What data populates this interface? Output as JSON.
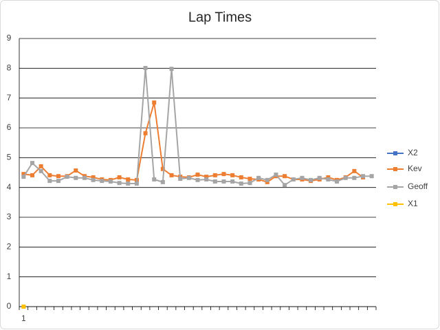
{
  "chart_data": {
    "type": "line",
    "title": "Lap Times",
    "categories": [
      "1",
      null,
      null,
      null,
      null,
      null,
      null,
      null,
      null,
      null,
      null,
      null,
      null,
      null,
      null,
      null,
      null,
      null,
      null,
      null,
      null,
      null,
      null,
      null,
      null,
      null,
      null,
      null,
      null,
      null,
      null,
      null,
      null,
      null,
      null,
      null,
      null,
      null,
      null,
      null,
      null
    ],
    "series": [
      {
        "name": "X2",
        "color": "#4472c4",
        "values": [
          null,
          null,
          null,
          null,
          null,
          null,
          null,
          null,
          null,
          null,
          null,
          null,
          null,
          null,
          null,
          null,
          null,
          null,
          null,
          null,
          null,
          null,
          null,
          null,
          null,
          null,
          null,
          null,
          null,
          null,
          null,
          null,
          null,
          null,
          null,
          null,
          null,
          null,
          null,
          null,
          null
        ]
      },
      {
        "name": "Kev",
        "color": "#ed7d31",
        "values": [
          4.45,
          4.41,
          4.71,
          4.41,
          4.38,
          4.38,
          4.57,
          4.38,
          4.34,
          4.27,
          4.25,
          4.34,
          4.27,
          4.25,
          5.82,
          6.85,
          4.62,
          4.41,
          4.36,
          4.34,
          4.43,
          4.36,
          4.41,
          4.45,
          4.41,
          4.34,
          4.29,
          4.27,
          4.18,
          4.38,
          4.38,
          4.27,
          4.27,
          4.22,
          4.27,
          4.34,
          4.25,
          4.34,
          4.55,
          4.34,
          null
        ]
      },
      {
        "name": "Geoff",
        "color": "#a5a5a5",
        "values": [
          4.36,
          4.82,
          4.55,
          4.22,
          4.22,
          4.36,
          4.32,
          4.32,
          4.25,
          4.22,
          4.2,
          4.15,
          4.13,
          4.13,
          8.01,
          4.27,
          4.18,
          7.98,
          4.29,
          4.32,
          4.25,
          4.27,
          4.2,
          4.2,
          4.2,
          4.13,
          4.15,
          4.32,
          4.25,
          4.43,
          4.08,
          4.27,
          4.32,
          4.25,
          4.32,
          4.27,
          4.2,
          4.32,
          4.32,
          4.38,
          4.38
        ]
      },
      {
        "name": "X1",
        "color": "#ffc000",
        "values": [
          0,
          null,
          null,
          null,
          null,
          null,
          null,
          null,
          null,
          null,
          null,
          null,
          null,
          null,
          null,
          null,
          null,
          null,
          null,
          null,
          null,
          null,
          null,
          null,
          null,
          null,
          null,
          null,
          null,
          null,
          null,
          null,
          null,
          null,
          null,
          null,
          null,
          null,
          null,
          null,
          null
        ]
      }
    ],
    "ylim": [
      0,
      9
    ],
    "yticks": [
      0,
      1,
      2,
      3,
      4,
      5,
      6,
      7,
      8,
      9
    ],
    "grid": true,
    "legend": "right",
    "markers": true
  }
}
